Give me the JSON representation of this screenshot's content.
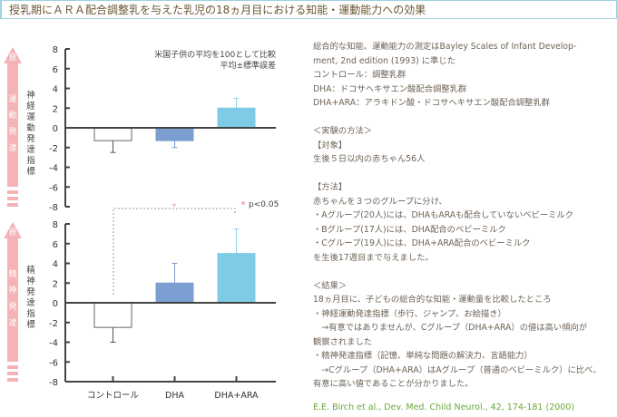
{
  "title": "授乳期にＡＲＡ配合調整乳を与えた乳児の18ヵ月目における知能・運動能力への効果",
  "chart_data": [
    {
      "type": "bar",
      "title": "神経運動発達指標",
      "arrow_label": "運動発達",
      "arrow_top": "良",
      "categories": [
        "コントロール",
        "DHA",
        "DHA+ARA"
      ],
      "values": [
        -1.3,
        -1.3,
        2.0
      ],
      "errors_to": [
        -2.5,
        -2.0,
        3.0
      ],
      "ylim": [
        -8,
        8
      ],
      "yticks": [
        "8",
        "6",
        "4",
        "2",
        "0",
        "-2",
        "-4",
        "-6",
        "-8"
      ],
      "note1": "米国子供の平均を100として比較",
      "note2": "平均±標準誤差",
      "legend": "p<0.05"
    },
    {
      "type": "bar",
      "title": "精神発達指標",
      "arrow_label": "精神発達",
      "arrow_top": "良",
      "categories": [
        "コントロール",
        "DHA",
        "DHA+ARA"
      ],
      "values": [
        -2.5,
        2.0,
        5.0
      ],
      "errors_to": [
        -4.0,
        4.0,
        7.5
      ],
      "ylim": [
        -8,
        8
      ],
      "yticks": [
        "8",
        "6",
        "4",
        "2",
        "0",
        "-2",
        "-4",
        "-6",
        "-8"
      ],
      "significance": "*"
    }
  ],
  "colors": [
    "#ffffff",
    "#7a9fd0",
    "#7ecbe6"
  ],
  "text": [
    "総合的な知能、運動能力の測定はBayley Scales of Infant Develop-",
    "ment, 2nd edition (1993) に準じた",
    "コントロール：調整乳群",
    "DHA：ドコサヘキサエン酸配合調整乳群",
    "DHA+ARA：アラキドン酸・ドコサヘキサエン酸配合調整乳群",
    "",
    "＜実験の方法＞",
    "【対象】",
    "生後５日以内の赤ちゃん56人",
    "",
    "【方法】",
    "赤ちゃんを３つのグループに分け、",
    "・Aグループ(20人)には、DHAもARAも配合していないベビーミルク",
    "・Bグループ(17人)には、DHA配合のベビーミルク",
    "・Cグループ(19人)には、DHA+ARA配合のベビーミルク",
    "を生後17週目まで与えました。",
    "",
    "＜結果＞",
    "18ヵ月目に、子どもの総合的な知能・運動量を比較したところ",
    "・神経運動発達指標（歩行、ジャンプ、お絵描き）",
    "　→有意ではありませんが、Cグループ（DHA+ARA）の値は高い傾向が",
    "観察されました",
    "・精神発達指標（記憶、単純な問題の解決力、言語能力）",
    "　→Cグループ（DHA+ARA）はAグループ（普通のベビーミルク）に比べ、",
    "有意に高い値であることが分かりました。"
  ],
  "citation": "E.E. Birch et al., Dev. Med. Child Neurol., 42, 174-181 (2000)"
}
